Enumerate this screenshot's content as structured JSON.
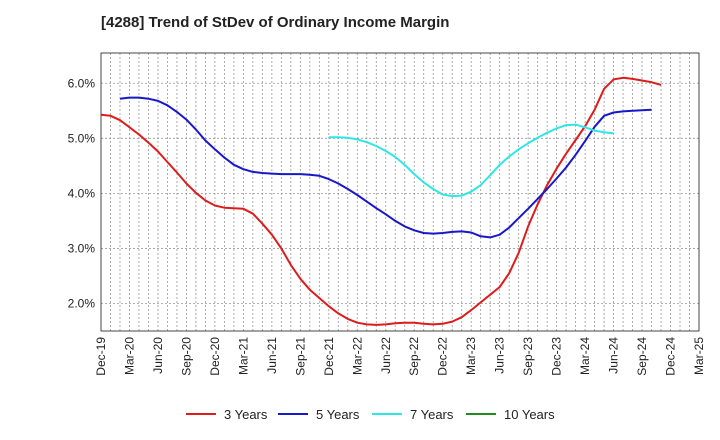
{
  "chart_data": {
    "type": "line",
    "title": "[4288]  Trend of StDev of Ordinary Income Margin",
    "x_tick_labels": [
      "Dec-19",
      "Mar-20",
      "Jun-20",
      "Sep-20",
      "Dec-20",
      "Mar-21",
      "Jun-21",
      "Sep-21",
      "Dec-21",
      "Mar-22",
      "Jun-22",
      "Sep-22",
      "Dec-22",
      "Mar-23",
      "Jun-23",
      "Sep-23",
      "Dec-23",
      "Mar-24",
      "Jun-24",
      "Sep-24",
      "Dec-24",
      "Mar-25"
    ],
    "y_tick_labels": [
      "2.0%",
      "3.0%",
      "4.0%",
      "5.0%",
      "6.0%"
    ],
    "y_ticks": [
      2.0,
      3.0,
      4.0,
      5.0,
      6.0
    ],
    "ylim": [
      1.5,
      6.55
    ],
    "xlim": [
      0,
      63
    ],
    "x_unit": "months since Dec-19",
    "grid": "vertical dashed lines at each month, horizontal dashed lines at y ticks",
    "legend_position": "bottom",
    "series": [
      {
        "name": "3 Years",
        "color": "#dd1c1c",
        "points": [
          [
            0,
            5.43
          ],
          [
            1,
            5.41
          ],
          [
            2,
            5.33
          ],
          [
            3,
            5.2
          ],
          [
            4,
            5.07
          ],
          [
            5,
            4.92
          ],
          [
            6,
            4.76
          ],
          [
            7,
            4.57
          ],
          [
            8,
            4.38
          ],
          [
            9,
            4.18
          ],
          [
            10,
            4.01
          ],
          [
            11,
            3.87
          ],
          [
            12,
            3.78
          ],
          [
            13,
            3.74
          ],
          [
            14,
            3.73
          ],
          [
            15,
            3.72
          ],
          [
            16,
            3.63
          ],
          [
            17,
            3.45
          ],
          [
            18,
            3.25
          ],
          [
            19,
            3.0
          ],
          [
            20,
            2.7
          ],
          [
            21,
            2.45
          ],
          [
            22,
            2.25
          ],
          [
            23,
            2.1
          ],
          [
            24,
            1.95
          ],
          [
            25,
            1.82
          ],
          [
            26,
            1.72
          ],
          [
            27,
            1.65
          ],
          [
            28,
            1.62
          ],
          [
            29,
            1.61
          ],
          [
            30,
            1.62
          ],
          [
            31,
            1.64
          ],
          [
            32,
            1.65
          ],
          [
            33,
            1.65
          ],
          [
            34,
            1.63
          ],
          [
            35,
            1.62
          ],
          [
            36,
            1.63
          ],
          [
            37,
            1.67
          ],
          [
            38,
            1.75
          ],
          [
            39,
            1.88
          ],
          [
            40,
            2.02
          ],
          [
            41,
            2.16
          ],
          [
            42,
            2.3
          ],
          [
            43,
            2.55
          ],
          [
            44,
            2.92
          ],
          [
            45,
            3.4
          ],
          [
            46,
            3.8
          ],
          [
            47,
            4.15
          ],
          [
            48,
            4.45
          ],
          [
            49,
            4.72
          ],
          [
            50,
            4.97
          ],
          [
            51,
            5.22
          ],
          [
            52,
            5.52
          ],
          [
            53,
            5.9
          ],
          [
            54,
            6.07
          ],
          [
            55,
            6.1
          ],
          [
            56,
            6.08
          ],
          [
            57,
            6.05
          ],
          [
            58,
            6.02
          ],
          [
            59,
            5.97
          ]
        ]
      },
      {
        "name": "5 Years",
        "color": "#1818c8",
        "points": [
          [
            2,
            5.72
          ],
          [
            3,
            5.74
          ],
          [
            4,
            5.74
          ],
          [
            5,
            5.72
          ],
          [
            6,
            5.68
          ],
          [
            7,
            5.6
          ],
          [
            8,
            5.48
          ],
          [
            9,
            5.34
          ],
          [
            10,
            5.16
          ],
          [
            11,
            4.96
          ],
          [
            12,
            4.8
          ],
          [
            13,
            4.65
          ],
          [
            14,
            4.52
          ],
          [
            15,
            4.44
          ],
          [
            16,
            4.39
          ],
          [
            17,
            4.37
          ],
          [
            18,
            4.36
          ],
          [
            19,
            4.35
          ],
          [
            20,
            4.35
          ],
          [
            21,
            4.35
          ],
          [
            22,
            4.34
          ],
          [
            23,
            4.32
          ],
          [
            24,
            4.26
          ],
          [
            25,
            4.18
          ],
          [
            26,
            4.08
          ],
          [
            27,
            3.97
          ],
          [
            28,
            3.85
          ],
          [
            29,
            3.73
          ],
          [
            30,
            3.62
          ],
          [
            31,
            3.5
          ],
          [
            32,
            3.4
          ],
          [
            33,
            3.33
          ],
          [
            34,
            3.28
          ],
          [
            35,
            3.27
          ],
          [
            36,
            3.28
          ],
          [
            37,
            3.3
          ],
          [
            38,
            3.31
          ],
          [
            39,
            3.29
          ],
          [
            40,
            3.22
          ],
          [
            41,
            3.2
          ],
          [
            42,
            3.25
          ],
          [
            43,
            3.38
          ],
          [
            44,
            3.55
          ],
          [
            45,
            3.72
          ],
          [
            46,
            3.9
          ],
          [
            47,
            4.08
          ],
          [
            48,
            4.27
          ],
          [
            49,
            4.47
          ],
          [
            50,
            4.7
          ],
          [
            51,
            4.95
          ],
          [
            52,
            5.21
          ],
          [
            53,
            5.41
          ],
          [
            54,
            5.47
          ],
          [
            55,
            5.49
          ],
          [
            56,
            5.5
          ],
          [
            57,
            5.51
          ],
          [
            58,
            5.52
          ]
        ]
      },
      {
        "name": "7 Years",
        "color": "#2ee6e6",
        "points": [
          [
            24,
            5.02
          ],
          [
            25,
            5.02
          ],
          [
            26,
            5.01
          ],
          [
            27,
            4.98
          ],
          [
            28,
            4.93
          ],
          [
            29,
            4.86
          ],
          [
            30,
            4.77
          ],
          [
            31,
            4.66
          ],
          [
            32,
            4.52
          ],
          [
            33,
            4.35
          ],
          [
            34,
            4.2
          ],
          [
            35,
            4.08
          ],
          [
            36,
            3.98
          ],
          [
            37,
            3.95
          ],
          [
            38,
            3.96
          ],
          [
            39,
            4.03
          ],
          [
            40,
            4.15
          ],
          [
            41,
            4.33
          ],
          [
            42,
            4.52
          ],
          [
            43,
            4.67
          ],
          [
            44,
            4.8
          ],
          [
            45,
            4.91
          ],
          [
            46,
            5.01
          ],
          [
            47,
            5.1
          ],
          [
            48,
            5.18
          ],
          [
            49,
            5.24
          ],
          [
            50,
            5.25
          ],
          [
            51,
            5.2
          ],
          [
            52,
            5.14
          ],
          [
            53,
            5.11
          ],
          [
            54,
            5.09
          ]
        ]
      },
      {
        "name": "10 Years",
        "color": "#1e8c1e",
        "points": []
      }
    ]
  }
}
